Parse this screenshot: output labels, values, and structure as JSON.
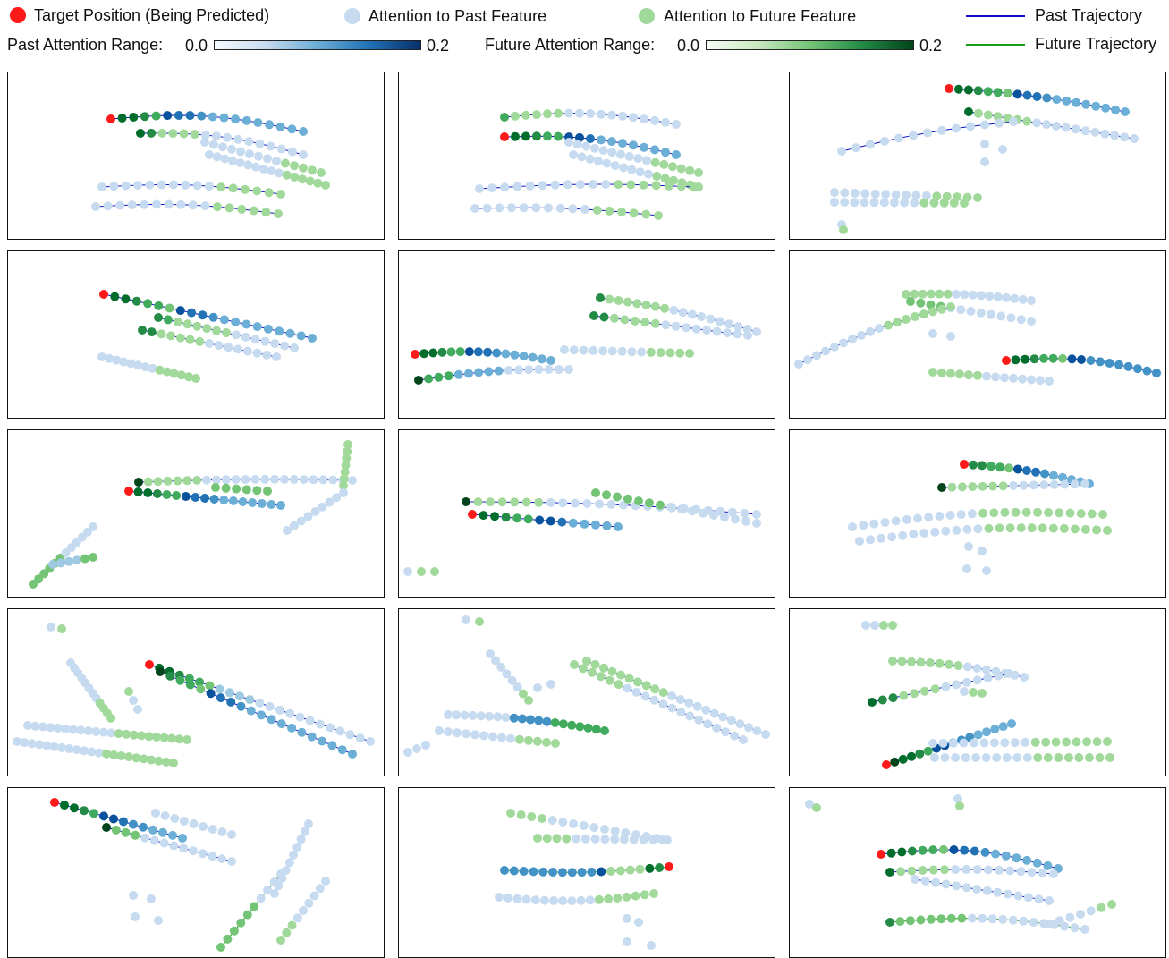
{
  "legend": {
    "target_label": "Target Position (Being Predicted)",
    "past_feature_label": "Attention to Past Feature",
    "future_feature_label": "Attention to Future Feature",
    "past_traj_label": "Past Trajectory",
    "future_traj_label": "Future Trajectory",
    "past_range_label": "Past Attention Range:",
    "future_range_label": "Future Attention Range:",
    "past_range_min": "0.0",
    "past_range_max": "0.2",
    "future_range_min": "0.0",
    "future_range_max": "0.2"
  },
  "colors": {
    "target": "#ff1a1a",
    "past_dot_light": "#c6dbef",
    "future_dot_light": "#a1d99b",
    "past_line": "#1010c8",
    "future_line": "#1a9a1a",
    "past_scale": [
      "#f7fbff",
      "#c6dbef",
      "#6baed6",
      "#2171b5",
      "#08306b"
    ],
    "future_scale": [
      "#f7fcf5",
      "#c7e9c0",
      "#74c476",
      "#238b45",
      "#00441b"
    ]
  },
  "grid": {
    "rows": 5,
    "cols": 3
  }
}
